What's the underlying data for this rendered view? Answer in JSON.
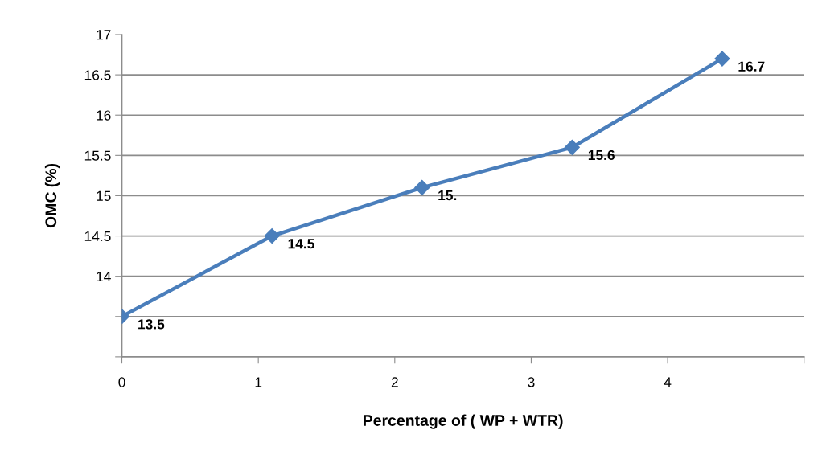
{
  "chart_data": {
    "type": "line",
    "xlabel": "Percentage of ( WP + WTR)",
    "ylabel": "OMC (%)",
    "x": [
      0,
      1.1,
      2.2,
      3.3,
      4.4
    ],
    "series": [
      {
        "color": "#4a7ebb",
        "values": [
          13.5,
          14.5,
          15.1,
          15.6,
          16.7
        ],
        "value_labels": [
          "13.5",
          "14.5",
          "15.",
          "15.6",
          "16.7"
        ]
      }
    ],
    "xlim": [
      0,
      5
    ],
    "xticks": [
      0,
      1,
      2,
      3,
      4,
      {
        "value": 5,
        "label": null
      }
    ],
    "ylim": [
      13,
      17
    ],
    "yticks": [
      {
        "value": 13,
        "label": null
      },
      {
        "value": 13.5,
        "label": null
      },
      14,
      14.5,
      15,
      15.5,
      16,
      16.5,
      17
    ],
    "grid": "y",
    "legend": false,
    "marker": "diamond",
    "line_style": "solid"
  }
}
